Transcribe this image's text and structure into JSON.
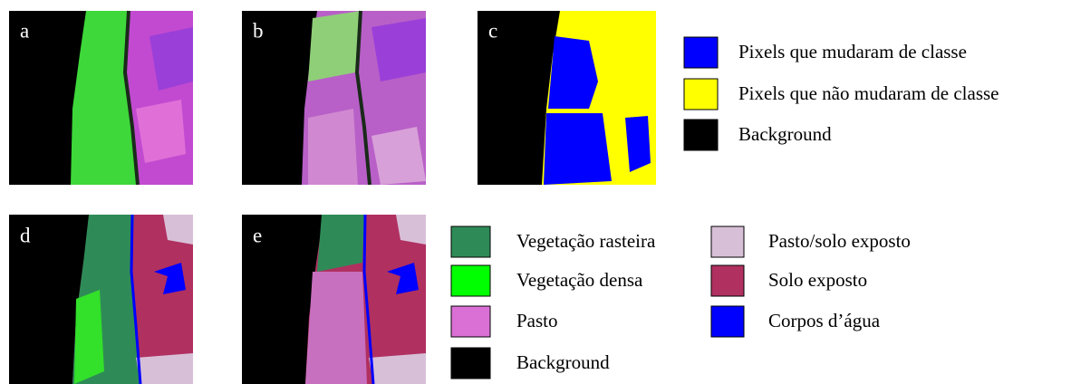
{
  "panels": [
    {
      "label": "a"
    },
    {
      "label": "b"
    },
    {
      "label": "c"
    },
    {
      "label": "d"
    },
    {
      "label": "e"
    }
  ],
  "change_legend": [
    {
      "label": "Pixels que mudaram de classe",
      "color": "#0000ff"
    },
    {
      "label": "Pixels que não mudaram de classe",
      "color": "#ffff00"
    },
    {
      "label": "Background",
      "color": "#000000"
    }
  ],
  "class_legend": [
    {
      "label": "Vegetação rasteira",
      "color": "#2e8b57"
    },
    {
      "label": "Vegetação densa",
      "color": "#00ff00"
    },
    {
      "label": "Pasto",
      "color": "#da70d6"
    },
    {
      "label": "Background",
      "color": "#000000"
    },
    {
      "label": "Pasto/solo exposto",
      "color": "#d8bfd8"
    },
    {
      "label": "Solo exposto",
      "color": "#b03060"
    },
    {
      "label": "Corpos d’água",
      "color": "#0000ff"
    }
  ]
}
